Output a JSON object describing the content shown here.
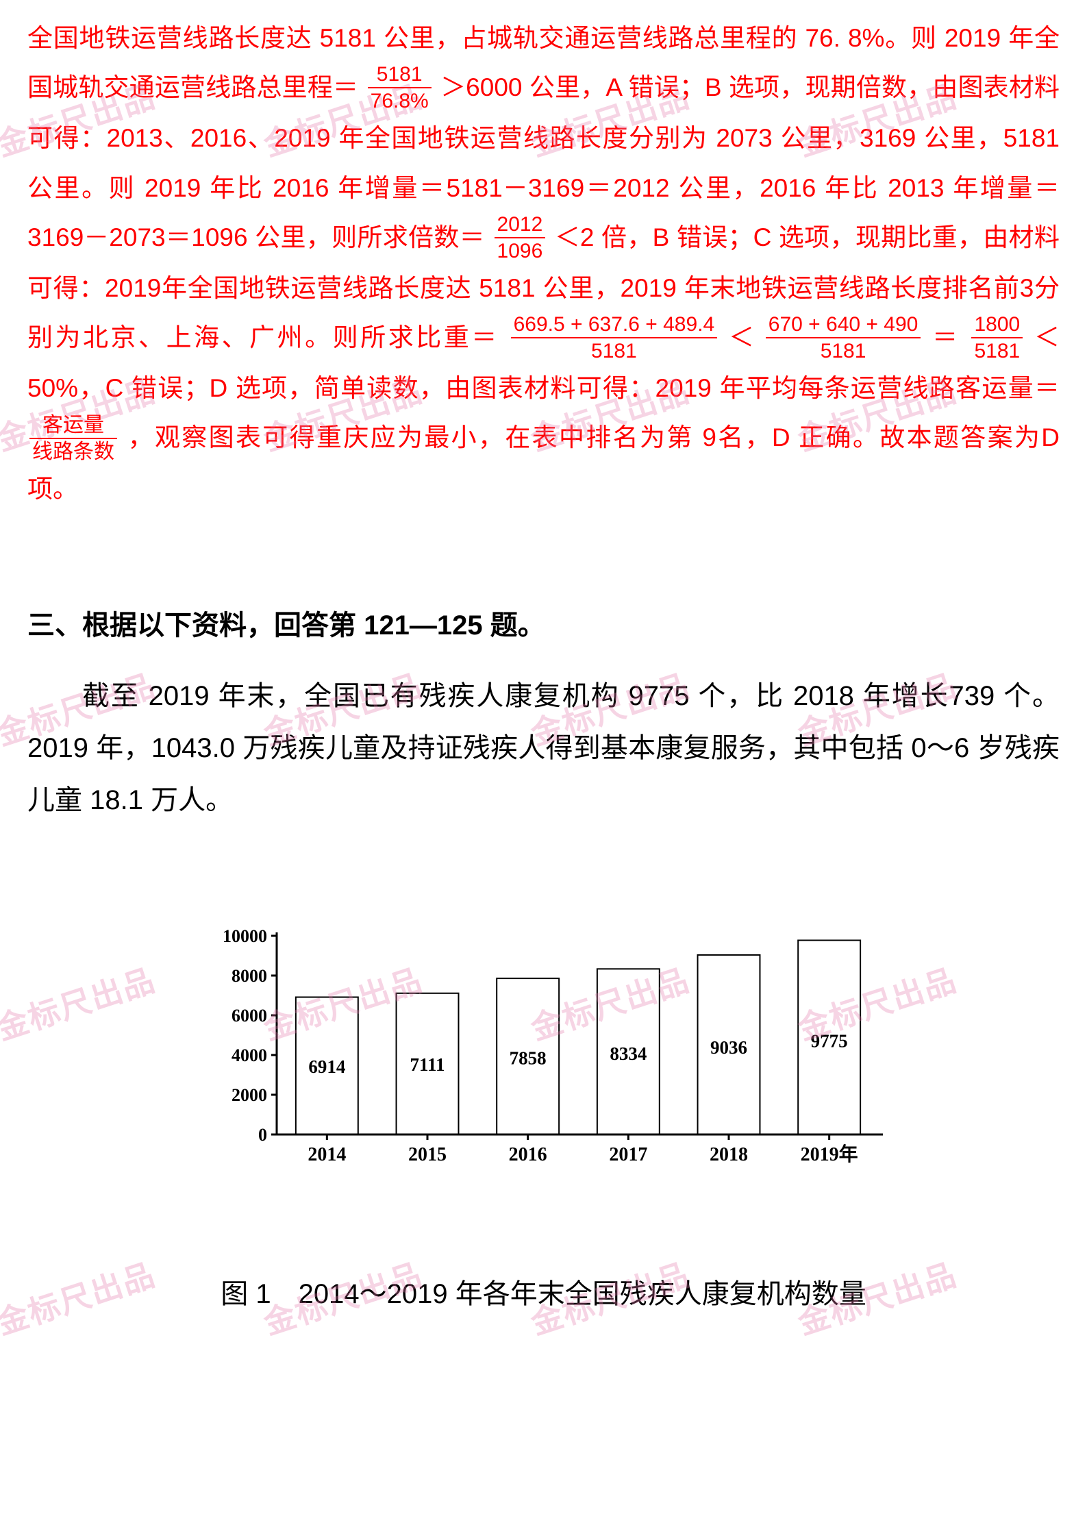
{
  "watermark_text": "金标尺出品",
  "solution": {
    "p1a": "全国地铁运营线路长度达 5181 公里，占城轨交通运营线路总里程的 76. 8%。则 2019 年全国城轨交通运营线路总里程＝",
    "frac1_num": "5181",
    "frac1_den": "76.8%",
    "p1b": "＞6000 公里，A 错误；B 选项，现期倍数，由图表材料可得：2013、2016、2019 年全国地铁运营线路长度分别为 2073 公里，3169 公里，5181 公里。则 2019 年比 2016 年增量＝5181－3169＝2012 公里，2016 年比 2013 年增量＝3169－2073＝1096 公里，则所求倍数＝",
    "frac2_num": "2012",
    "frac2_den": "1096",
    "p1c": "＜2 倍，B 错误；C 选项，现期比重，由材料可得：2019年全国地铁运营线路长度达 5181 公里，2019 年末地铁运营线路长度排名前3分别为北京、上海、广州。则所求比重＝",
    "frac3_num": "669.5 + 637.6 + 489.4",
    "frac3_den": "5181",
    "p1d": "＜",
    "frac4_num": "670 + 640 + 490",
    "frac4_den": "5181",
    "p1e": "＝",
    "frac5_num": "1800",
    "frac5_den": "5181",
    "p1f": "＜50%，C 错误；D 选项，简单读数，由图表材料可得：2019 年平均每条运营线路客运量＝",
    "frac6_num": "客运量",
    "frac6_den": "线路条数",
    "p1g": "，观察图表可得重庆应为最小，在表中排名为第 9名，D 正确。故本题答案为D 项。"
  },
  "section_title": "三、根据以下资料，回答第 121—125 题。",
  "body_paragraph": "截至 2019 年末，全国已有残疾人康复机构 9775 个，比 2018 年增长739 个。2019 年，1043.0 万残疾儿童及持证残疾人得到基本康复服务，其中包括 0～6 岁残疾儿童 18.1 万人。",
  "chart": {
    "type": "bar",
    "categories": [
      "2014",
      "2015",
      "2016",
      "2017",
      "2018",
      "2019年"
    ],
    "values": [
      6914,
      7111,
      7858,
      8334,
      9036,
      9775
    ],
    "bar_fill": "#ffffff",
    "bar_stroke": "#000000",
    "axis_color": "#000000",
    "y_ticks": [
      0,
      2000,
      4000,
      6000,
      8000,
      10000
    ],
    "ylim": [
      0,
      10000
    ],
    "bar_width_ratio": 0.62,
    "label_fontsize": 27,
    "tick_fontsize": 26,
    "background_color": "#ffffff"
  },
  "chart_caption": "图 1　2014～2019 年各年末全国残疾人康复机构数量"
}
